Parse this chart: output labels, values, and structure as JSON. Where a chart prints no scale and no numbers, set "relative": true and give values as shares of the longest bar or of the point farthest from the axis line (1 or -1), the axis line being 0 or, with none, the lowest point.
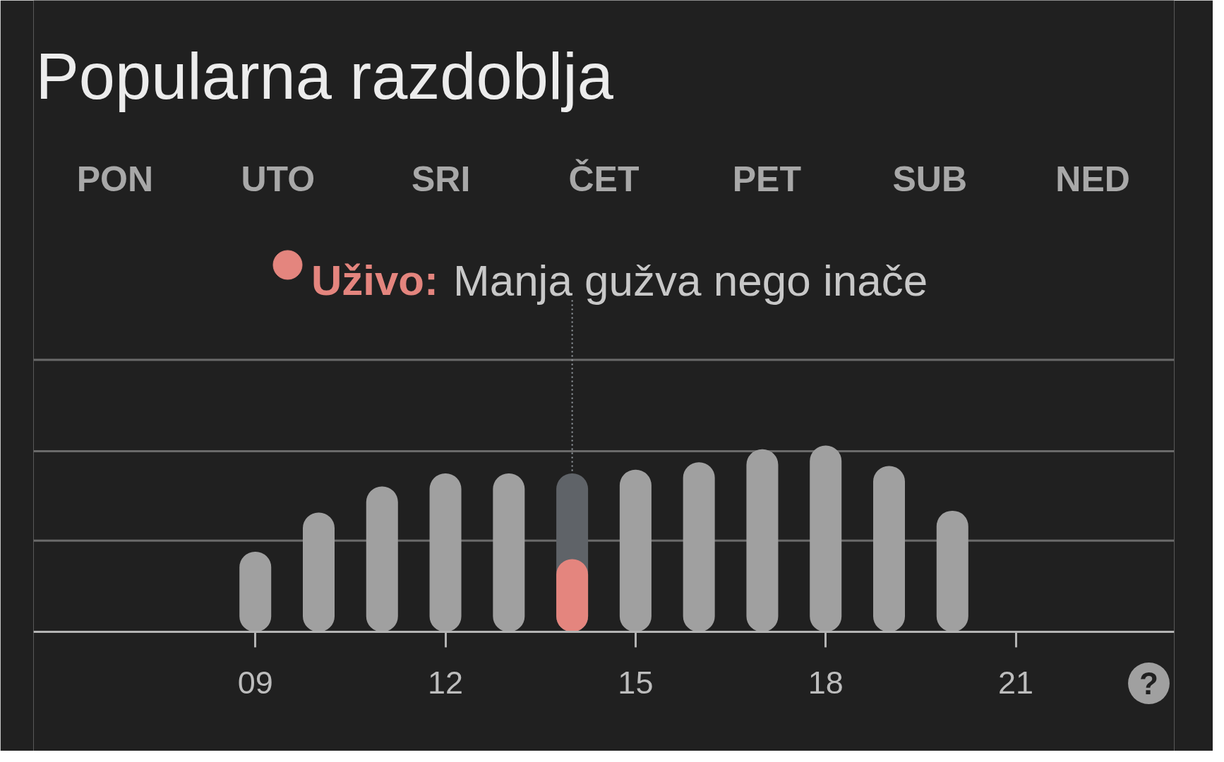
{
  "chart_data": {
    "type": "bar",
    "title": "Popularna razdoblja",
    "relative": true,
    "x": [
      9,
      10,
      11,
      12,
      13,
      14,
      15,
      16,
      17,
      18,
      19,
      20
    ],
    "xlim": [
      5.5,
      23.5
    ],
    "xticks": [
      {
        "value": 9,
        "label": "09"
      },
      12,
      15,
      18,
      21
    ],
    "series": [
      {
        "colors": [
          "#a0a0a0",
          "#a0a0a0",
          "#a0a0a0",
          "#a0a0a0",
          "#a0a0a0",
          "#5f6368",
          "#a0a0a0",
          "#a0a0a0",
          "#a0a0a0",
          "#a0a0a0",
          "#a0a0a0",
          "#a0a0a0"
        ],
        "values": [
          0.43,
          0.64,
          0.78,
          0.85,
          0.85,
          0.85,
          0.87,
          0.91,
          0.98,
          1,
          0.89,
          0.65
        ]
      },
      {
        "name": "Uživo:",
        "color": "#e4857e",
        "values": [
          null,
          null,
          null,
          null,
          null,
          0.39,
          null,
          null,
          null,
          null,
          null,
          null
        ]
      }
    ],
    "legend": "top",
    "ref_lines": [
      {
        "axis": "y",
        "value": 0.49,
        "color": "#6a6a6a"
      },
      {
        "axis": "y",
        "value": 0.97,
        "color": "#6a6a6a"
      },
      {
        "axis": "y",
        "value": 1.46,
        "color": "#6a6a6a"
      },
      {
        "axis": "x",
        "value": 14,
        "color": "#9aa0a6",
        "line_style": "dotted"
      }
    ],
    "annotations": [
      "PON",
      "UTO",
      "SRI",
      "ČET",
      "PET",
      "SUB",
      "NED",
      "Manja gužva nego inače",
      "?"
    ]
  }
}
